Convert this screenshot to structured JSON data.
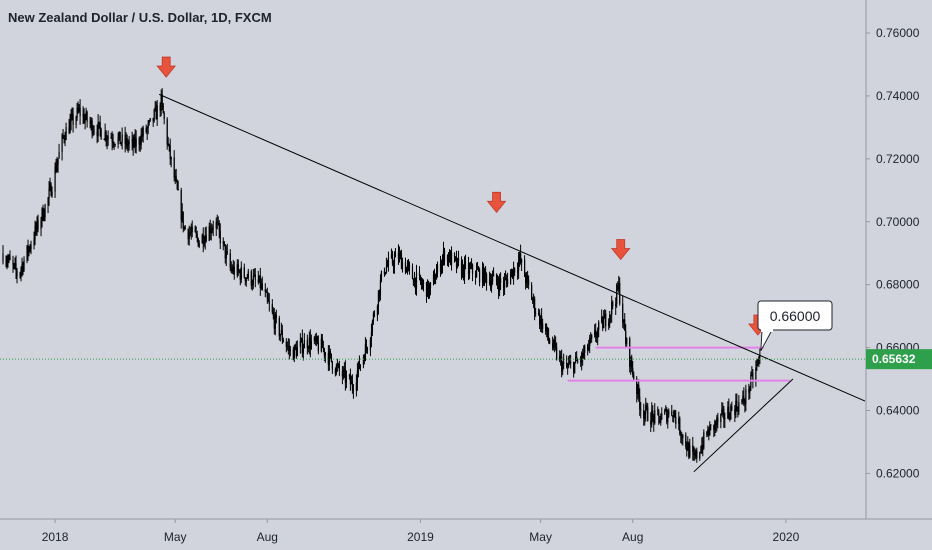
{
  "title": "New Zealand Dollar / U.S. Dollar, 1D, FXCM",
  "colors": {
    "background": "#d1d4dc",
    "candle": "#000000",
    "trendline": "#000000",
    "zone": "#e282e8",
    "arrow": "#e8533c",
    "price_line": "#2e9f4a",
    "price_badge": "#2e9f4a",
    "axis_text": "#1e222d"
  },
  "chart_data": {
    "type": "line",
    "title": "New Zealand Dollar / U.S. Dollar, 1D, FXCM",
    "x_tick_labels": [
      "2018",
      "May",
      "Aug",
      "2019",
      "May",
      "Aug",
      "2020"
    ],
    "x_tick_dates": [
      "2018-01-01",
      "2018-05-01",
      "2018-08-01",
      "2019-01-01",
      "2019-05-01",
      "2019-08-01",
      "2020-01-01"
    ],
    "y_tick_labels": [
      "0.62000",
      "0.64000",
      "0.66000",
      "0.68000",
      "0.70000",
      "0.72000",
      "0.74000",
      "0.76000"
    ],
    "y_ticks": [
      0.62,
      0.64,
      0.66,
      0.68,
      0.7,
      0.72,
      0.74,
      0.76
    ],
    "ylim": [
      0.6055,
      0.7705
    ],
    "xlim": [
      "2017-11-07",
      "2020-03-21"
    ],
    "grid": false,
    "series": [
      {
        "x": [
          "2017-11-10",
          "2017-11-25",
          "2017-12-10",
          "2017-12-25",
          "2018-01-10",
          "2018-01-25",
          "2018-02-05",
          "2018-02-20",
          "2018-03-05",
          "2018-03-20",
          "2018-04-05",
          "2018-04-17",
          "2018-04-25",
          "2018-05-10",
          "2018-05-25",
          "2018-06-10",
          "2018-06-25",
          "2018-07-10",
          "2018-07-25",
          "2018-08-10",
          "2018-08-25",
          "2018-09-10",
          "2018-09-25",
          "2018-10-10",
          "2018-10-25",
          "2018-11-10",
          "2018-11-25",
          "2018-12-10",
          "2018-12-25",
          "2019-01-10",
          "2019-01-25",
          "2019-02-10",
          "2019-02-25",
          "2019-03-10",
          "2019-03-25",
          "2019-04-10",
          "2019-04-25",
          "2019-05-10",
          "2019-05-25",
          "2019-06-10",
          "2019-06-25",
          "2019-07-10",
          "2019-07-18",
          "2019-07-25",
          "2019-08-10",
          "2019-08-25",
          "2019-09-10",
          "2019-09-25",
          "2019-10-01",
          "2019-10-15",
          "2019-10-30",
          "2019-11-10",
          "2019-11-20",
          "2019-12-01",
          "2019-12-06"
        ],
        "values": [
          0.69,
          0.683,
          0.695,
          0.707,
          0.728,
          0.735,
          0.731,
          0.728,
          0.726,
          0.724,
          0.73,
          0.738,
          0.722,
          0.698,
          0.694,
          0.7,
          0.685,
          0.683,
          0.68,
          0.667,
          0.658,
          0.662,
          0.66,
          0.653,
          0.648,
          0.662,
          0.685,
          0.689,
          0.682,
          0.678,
          0.69,
          0.685,
          0.684,
          0.682,
          0.68,
          0.688,
          0.673,
          0.662,
          0.653,
          0.656,
          0.664,
          0.672,
          0.679,
          0.662,
          0.64,
          0.637,
          0.64,
          0.628,
          0.624,
          0.633,
          0.638,
          0.641,
          0.643,
          0.652,
          0.657
        ]
      }
    ],
    "annotations": {
      "resistance_trendline": {
        "x": [
          "2018-04-15",
          "2020-03-20"
        ],
        "y": [
          0.7405,
          0.643
        ]
      },
      "support_trendline": {
        "x": [
          "2019-10-01",
          "2020-01-08"
        ],
        "y": [
          0.6205,
          0.65
        ]
      },
      "zones": [
        {
          "x": [
            "2019-06-25",
            "2019-12-10"
          ],
          "y": 0.66
        },
        {
          "x": [
            "2019-05-28",
            "2020-01-05"
          ],
          "y": 0.6495
        }
      ],
      "arrows": [
        {
          "x": "2018-04-22",
          "y": 0.746
        },
        {
          "x": "2019-03-18",
          "y": 0.703
        },
        {
          "x": "2019-07-20",
          "y": 0.688
        },
        {
          "x": "2019-12-04",
          "y": 0.664
        }
      ],
      "callout": {
        "label": "0.66000",
        "x": "2019-12-07",
        "y": 0.659
      },
      "last_price": {
        "value": 0.65632,
        "label": "0.65632"
      }
    }
  }
}
